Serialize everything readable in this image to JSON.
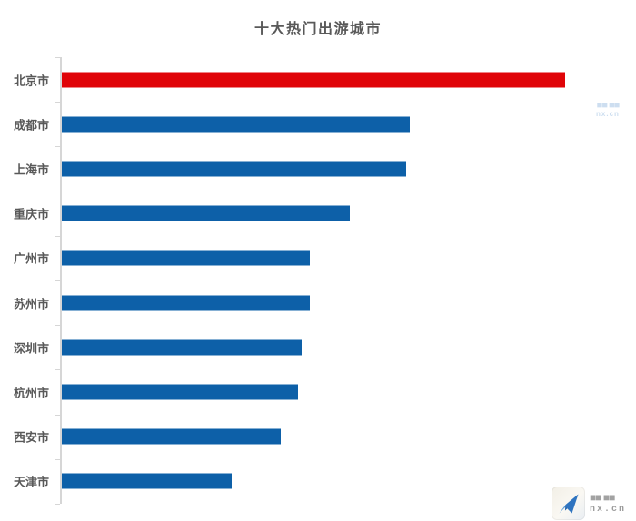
{
  "chart_data": {
    "type": "bar",
    "orientation": "horizontal",
    "title": "十大热门出游城市",
    "categories": [
      "北京市",
      "成都市",
      "上海市",
      "重庆市",
      "广州市",
      "苏州市",
      "深圳市",
      "杭州市",
      "西安市",
      "天津市"
    ],
    "values": [
      100,
      69.1,
      68.4,
      57.2,
      49.3,
      49.3,
      47.7,
      46.9,
      43.5,
      33.8
    ],
    "xlim": [
      0,
      107
    ],
    "xlabel": "",
    "ylabel": "",
    "grid": false,
    "legend": false,
    "value_labels": false,
    "highlight_index": 0,
    "highlight_color": "#e00408",
    "bar_color": "#0d60a8",
    "axis_color": "#d6d6d6",
    "text_color": "#595959"
  },
  "watermark_top": {
    "line1": "■■ ■■",
    "line2": "nx.cn"
  },
  "watermark_bottom": {
    "line1": "■■ ■■",
    "line2": "nx.cn"
  }
}
